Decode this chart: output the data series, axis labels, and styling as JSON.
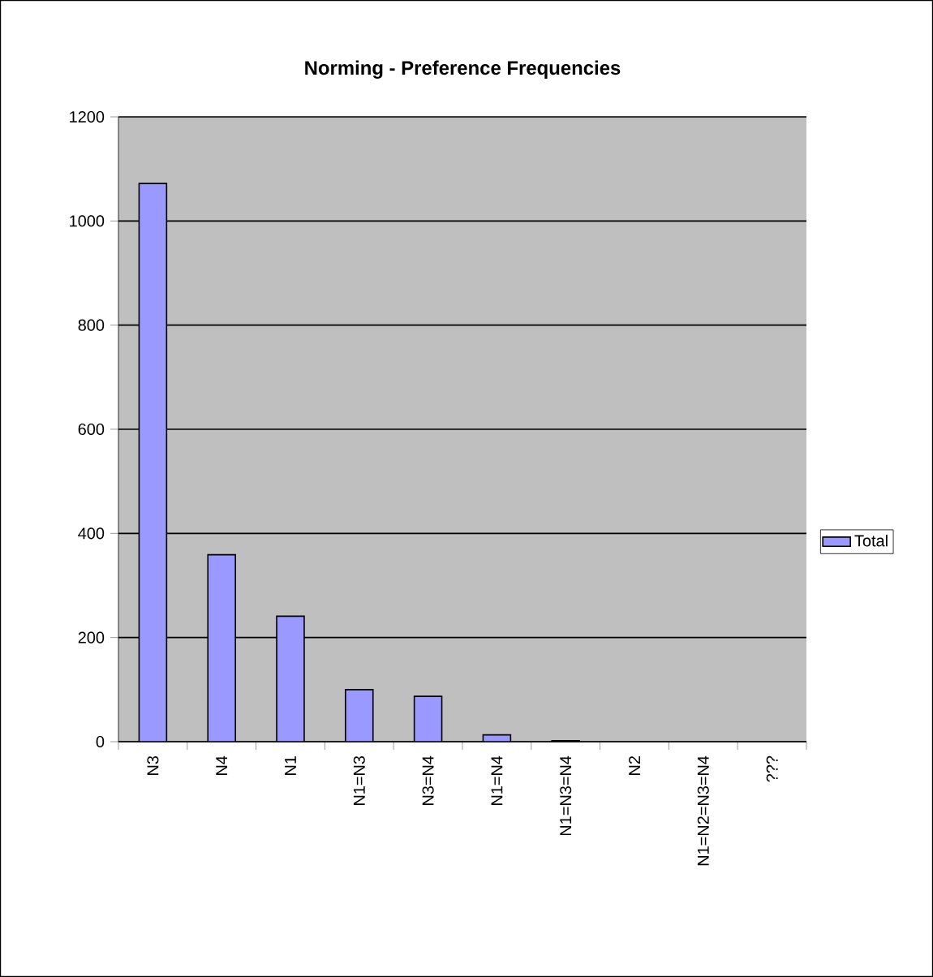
{
  "chart_data": {
    "type": "bar",
    "title": "Norming - Preference Frequencies",
    "categories": [
      "N3",
      "N4",
      "N1",
      "N1=N3",
      "N3=N4",
      "N1=N4",
      "N1=N3=N4",
      "N2",
      "N1=N2=N3=N4",
      "???"
    ],
    "series": [
      {
        "name": "Total",
        "color": "#9999ff",
        "values": [
          1072,
          359,
          241,
          100,
          87,
          13,
          2,
          null,
          null,
          null
        ]
      }
    ],
    "ylim": [
      0,
      1200
    ],
    "yticks": [
      0,
      200,
      400,
      600,
      800,
      1000,
      1200
    ],
    "grid": "y",
    "legend": "right"
  }
}
